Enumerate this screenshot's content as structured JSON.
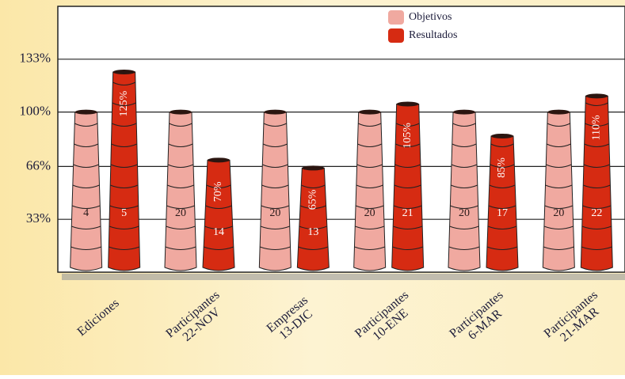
{
  "chart_data": {
    "type": "bar",
    "categories": [
      [
        "Ediciones"
      ],
      [
        "Participantes",
        "22-NOV"
      ],
      [
        "Empresas",
        "13-DIC"
      ],
      [
        "Participantes",
        "10-ENE"
      ],
      [
        "Participantes",
        "6-MAR"
      ],
      [
        "Participantes",
        "21-MAR"
      ]
    ],
    "series": [
      {
        "name": "Objetivos",
        "color": "#f0a9a0",
        "values": [
          100,
          100,
          100,
          100,
          100,
          100
        ],
        "counts": [
          "4",
          "20",
          "20",
          "20",
          "20",
          "20"
        ]
      },
      {
        "name": "Resultados",
        "color": "#d62b12",
        "values": [
          125,
          70,
          65,
          105,
          85,
          110
        ],
        "value_labels": [
          "125%",
          "70%",
          "65%",
          "105%",
          "85%",
          "110%"
        ],
        "counts": [
          "5",
          "14",
          "13",
          "21",
          "17",
          "22"
        ]
      }
    ],
    "ylim": [
      0,
      166
    ],
    "yticks": [
      {
        "value": 33,
        "label": "33%"
      },
      {
        "value": 66,
        "label": "66%"
      },
      {
        "value": 100,
        "label": "100%"
      },
      {
        "value": 133,
        "label": "133%"
      }
    ],
    "grid": true,
    "legend": "top-right"
  }
}
